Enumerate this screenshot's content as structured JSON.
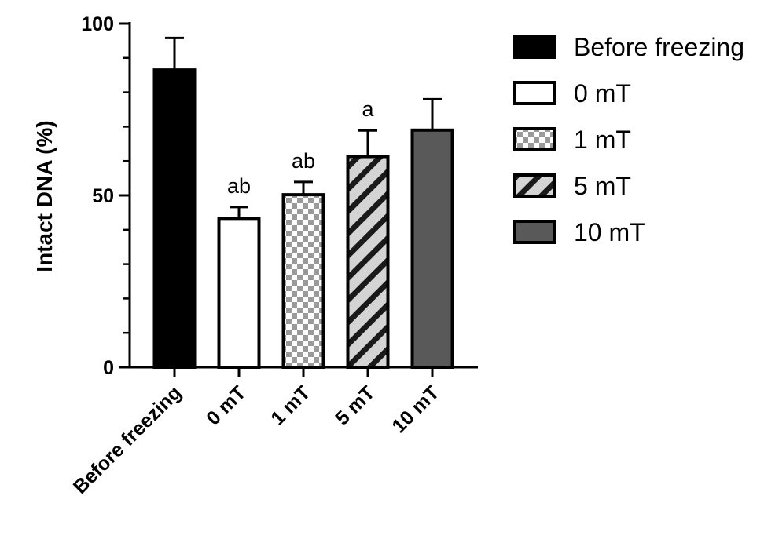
{
  "chart_data": {
    "type": "bar",
    "title": "",
    "xlabel": "",
    "ylabel": "Intact DNA (%)",
    "ylim": [
      0,
      100
    ],
    "yticks": [
      0,
      50,
      100
    ],
    "minor_tick_step": 10,
    "grid": false,
    "legend_position": "right",
    "categories": [
      "Before freezing",
      "0 mT",
      "1 mT",
      "5 mT",
      "10 mT"
    ],
    "values": [
      86.5,
      43.3,
      50.2,
      61.3,
      69.0
    ],
    "errors": [
      9.3,
      3.3,
      3.7,
      7.6,
      9.0
    ],
    "significance": [
      "",
      "ab",
      "ab",
      "a",
      ""
    ],
    "fills": [
      "solid-black",
      "white",
      "checker",
      "diagonal-stripes",
      "solid-gray"
    ],
    "colors": {
      "black": "#000000",
      "white": "#ffffff",
      "checker_light": "#ffffff",
      "checker_dark": "#9a9a9a",
      "stripe_light": "#d4d4d4",
      "stripe_dark": "#1a1a1a",
      "gray": "#595959"
    },
    "legend": [
      "Before freezing",
      "0 mT",
      "1 mT",
      "5 mT",
      "10 mT"
    ]
  }
}
